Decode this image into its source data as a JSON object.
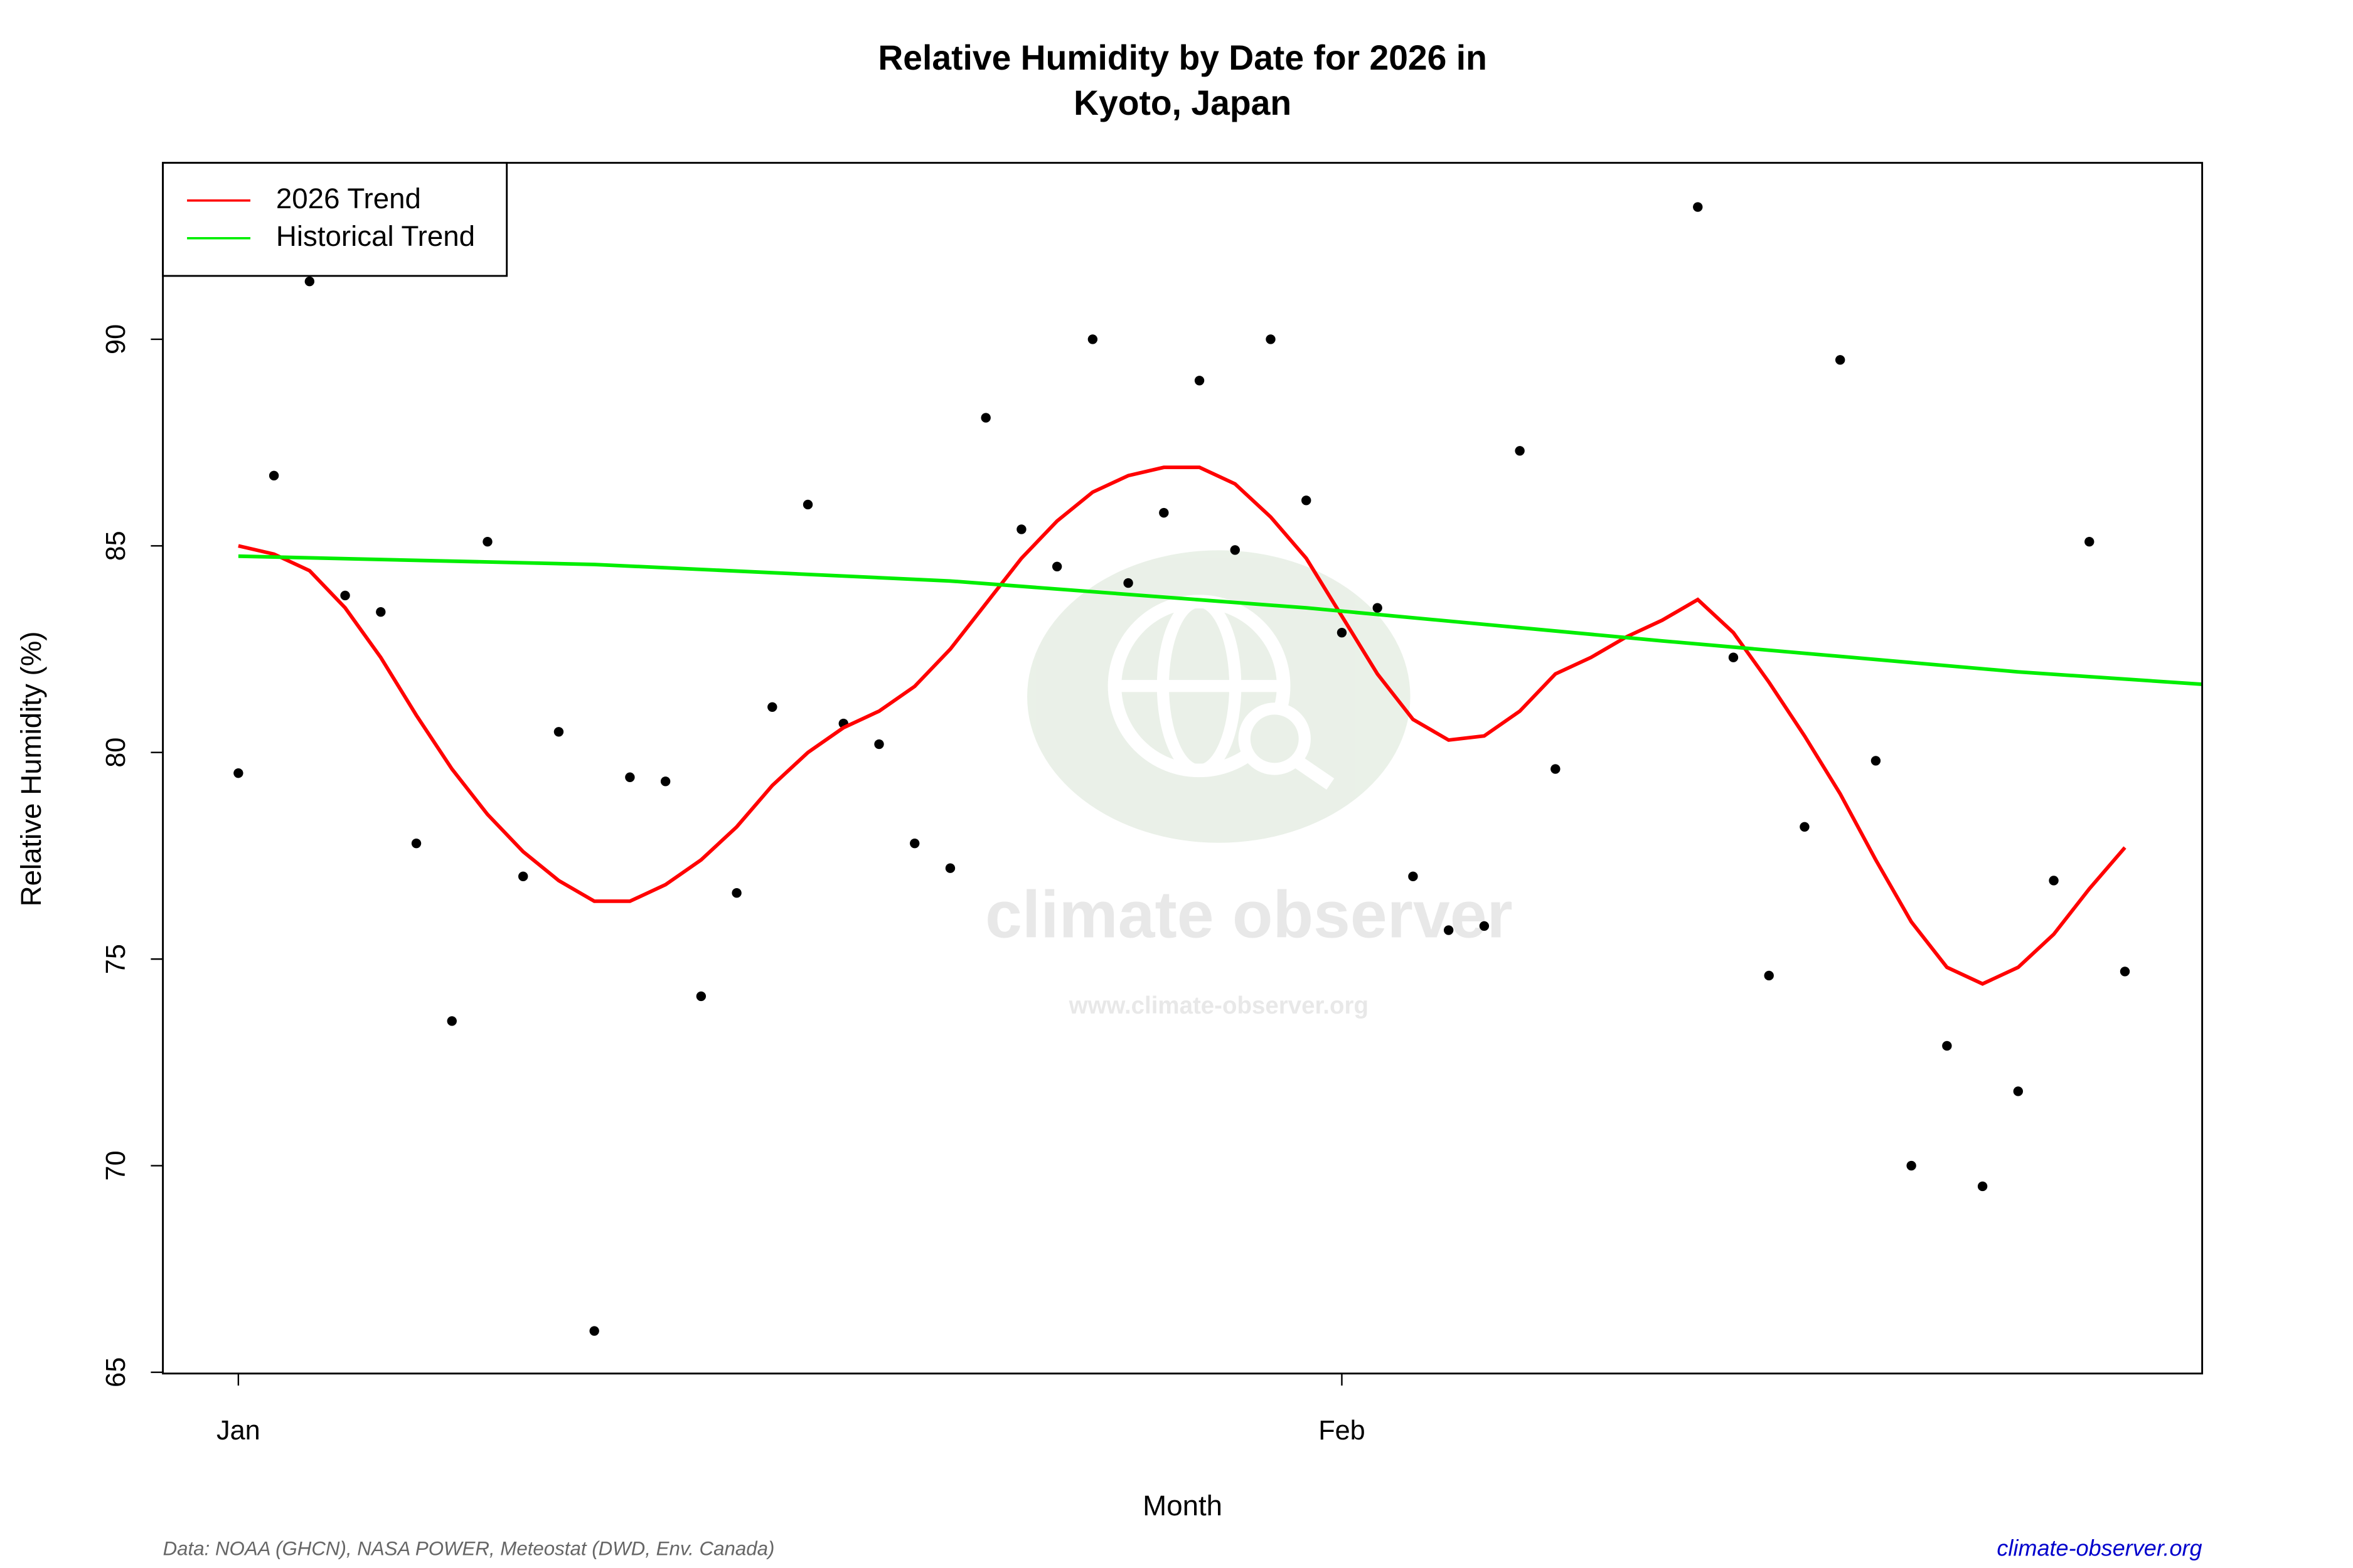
{
  "chart_data": {
    "type": "line",
    "title": "Relative Humidity by Date for 2026 in",
    "subtitle": "Kyoto, Japan",
    "x_label": "Month",
    "y_label": "Relative Humidity (%)",
    "xlim": [
      -2.12,
      55.17
    ],
    "xticks": [
      {
        "value": 0,
        "label": "Jan"
      },
      {
        "value": 31,
        "label": "Feb"
      }
    ],
    "ylim": [
      64.97,
      94.27
    ],
    "yticks": [
      65,
      70,
      75,
      80,
      85,
      90
    ],
    "legend": "top-left",
    "points": {
      "color": "#000000",
      "x": [
        0,
        1,
        2,
        3,
        4,
        5,
        6,
        7,
        8,
        9,
        10,
        11,
        12,
        13,
        14,
        15,
        16,
        17,
        18,
        19,
        20,
        21,
        22,
        23,
        24,
        25,
        26,
        27,
        28,
        29,
        30,
        31,
        32,
        33,
        34,
        35,
        36,
        37,
        41,
        42,
        43,
        44,
        45,
        46,
        47,
        48,
        49,
        50,
        51,
        52,
        53
      ],
      "values": [
        79.5,
        86.7,
        91.4,
        83.8,
        83.4,
        77.8,
        73.5,
        85.1,
        77.0,
        80.5,
        66.0,
        79.4,
        79.3,
        74.1,
        76.6,
        81.1,
        86.0,
        80.7,
        80.2,
        77.8,
        77.2,
        88.1,
        85.4,
        84.5,
        90.0,
        84.1,
        85.8,
        89.0,
        84.9,
        90.0,
        86.1,
        82.9,
        83.5,
        77.0,
        75.7,
        75.8,
        87.3,
        79.6,
        93.2,
        82.3,
        74.6,
        78.2,
        89.5,
        79.8,
        70.0,
        72.9,
        69.5,
        71.8,
        76.9,
        85.1,
        74.7
      ]
    },
    "series": [
      {
        "name": "2026 Trend",
        "color": "#ff0000",
        "x": [
          0,
          1,
          2,
          3,
          4,
          5,
          6,
          7,
          8,
          9,
          10,
          11,
          12,
          13,
          14,
          15,
          16,
          17,
          18,
          19,
          20,
          21,
          22,
          23,
          24,
          25,
          26,
          27,
          28,
          29,
          30,
          31,
          32,
          33,
          34,
          35,
          36,
          37,
          38,
          39,
          40,
          41,
          42,
          43,
          44,
          45,
          46,
          47,
          48,
          49,
          50,
          51,
          52,
          53
        ],
        "values": [
          85.0,
          84.8,
          84.4,
          83.5,
          82.3,
          80.9,
          79.6,
          78.5,
          77.6,
          76.9,
          76.4,
          76.4,
          76.8,
          77.4,
          78.2,
          79.2,
          80.0,
          80.6,
          81.0,
          81.6,
          82.5,
          83.6,
          84.7,
          85.6,
          86.3,
          86.7,
          86.9,
          86.9,
          86.5,
          85.7,
          84.7,
          83.3,
          81.9,
          80.8,
          80.3,
          80.4,
          81.0,
          81.9,
          82.3,
          82.8,
          83.2,
          83.7,
          82.9,
          81.7,
          80.4,
          79.0,
          77.4,
          75.9,
          74.8,
          74.4,
          74.8,
          75.6,
          76.7,
          77.7
        ]
      },
      {
        "name": "Historical Trend",
        "color": "#00ee00",
        "x": [
          0,
          10,
          20,
          30,
          40,
          50,
          55.17
        ],
        "values": [
          84.75,
          84.55,
          84.15,
          83.5,
          82.7,
          81.95,
          81.65
        ]
      }
    ],
    "watermark": {
      "name": "climate observer",
      "url": "www.climate-observer.org"
    },
    "source": "Data: NOAA (GHCN), NASA POWER, Meteostat (DWD, Env. Canada)",
    "site": "climate-observer.org"
  }
}
